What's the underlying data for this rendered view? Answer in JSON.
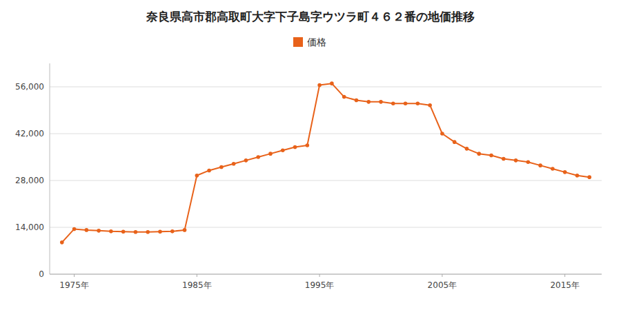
{
  "chart_data": {
    "type": "line",
    "title": "奈良県高市郡高取町大字下子島字ウツラ町４６２番の地価推移",
    "x": [
      1974,
      1975,
      1976,
      1977,
      1978,
      1979,
      1980,
      1981,
      1982,
      1983,
      1984,
      1985,
      1986,
      1987,
      1988,
      1989,
      1990,
      1991,
      1992,
      1993,
      1994,
      1995,
      1996,
      1997,
      1998,
      1999,
      2000,
      2001,
      2002,
      2003,
      2004,
      2005,
      2006,
      2007,
      2008,
      2009,
      2010,
      2011,
      2012,
      2013,
      2014,
      2015,
      2016,
      2017
    ],
    "series": [
      {
        "name": "価格",
        "color": "#E8621A",
        "marker": "circle",
        "values": [
          9500,
          13500,
          13200,
          13000,
          12800,
          12700,
          12600,
          12600,
          12700,
          12800,
          13200,
          29500,
          31000,
          32000,
          33000,
          34000,
          35000,
          36000,
          37000,
          38000,
          38500,
          56500,
          57000,
          53000,
          52000,
          51500,
          51500,
          51000,
          51000,
          51000,
          50500,
          42000,
          39500,
          37500,
          36000,
          35500,
          34500,
          34000,
          33500,
          32500,
          31500,
          30500,
          29500,
          29000
        ]
      }
    ],
    "xlim": [
      1973,
      2018
    ],
    "xticks": [
      {
        "value": 1975,
        "label": "1975年"
      },
      {
        "value": 1985,
        "label": "1985年"
      },
      {
        "value": 1995,
        "label": "1995年"
      },
      {
        "value": 2005,
        "label": "2005年"
      },
      {
        "value": 2015,
        "label": "2015年"
      }
    ],
    "ylim": [
      0,
      63000
    ],
    "yticks": [
      0,
      {
        "value": 14000,
        "label": "14,000"
      },
      {
        "value": 28000,
        "label": "28,000"
      },
      {
        "value": 42000,
        "label": "42,000"
      },
      {
        "value": 56000,
        "label": "56,000"
      }
    ],
    "grid": true,
    "legend": "top"
  }
}
